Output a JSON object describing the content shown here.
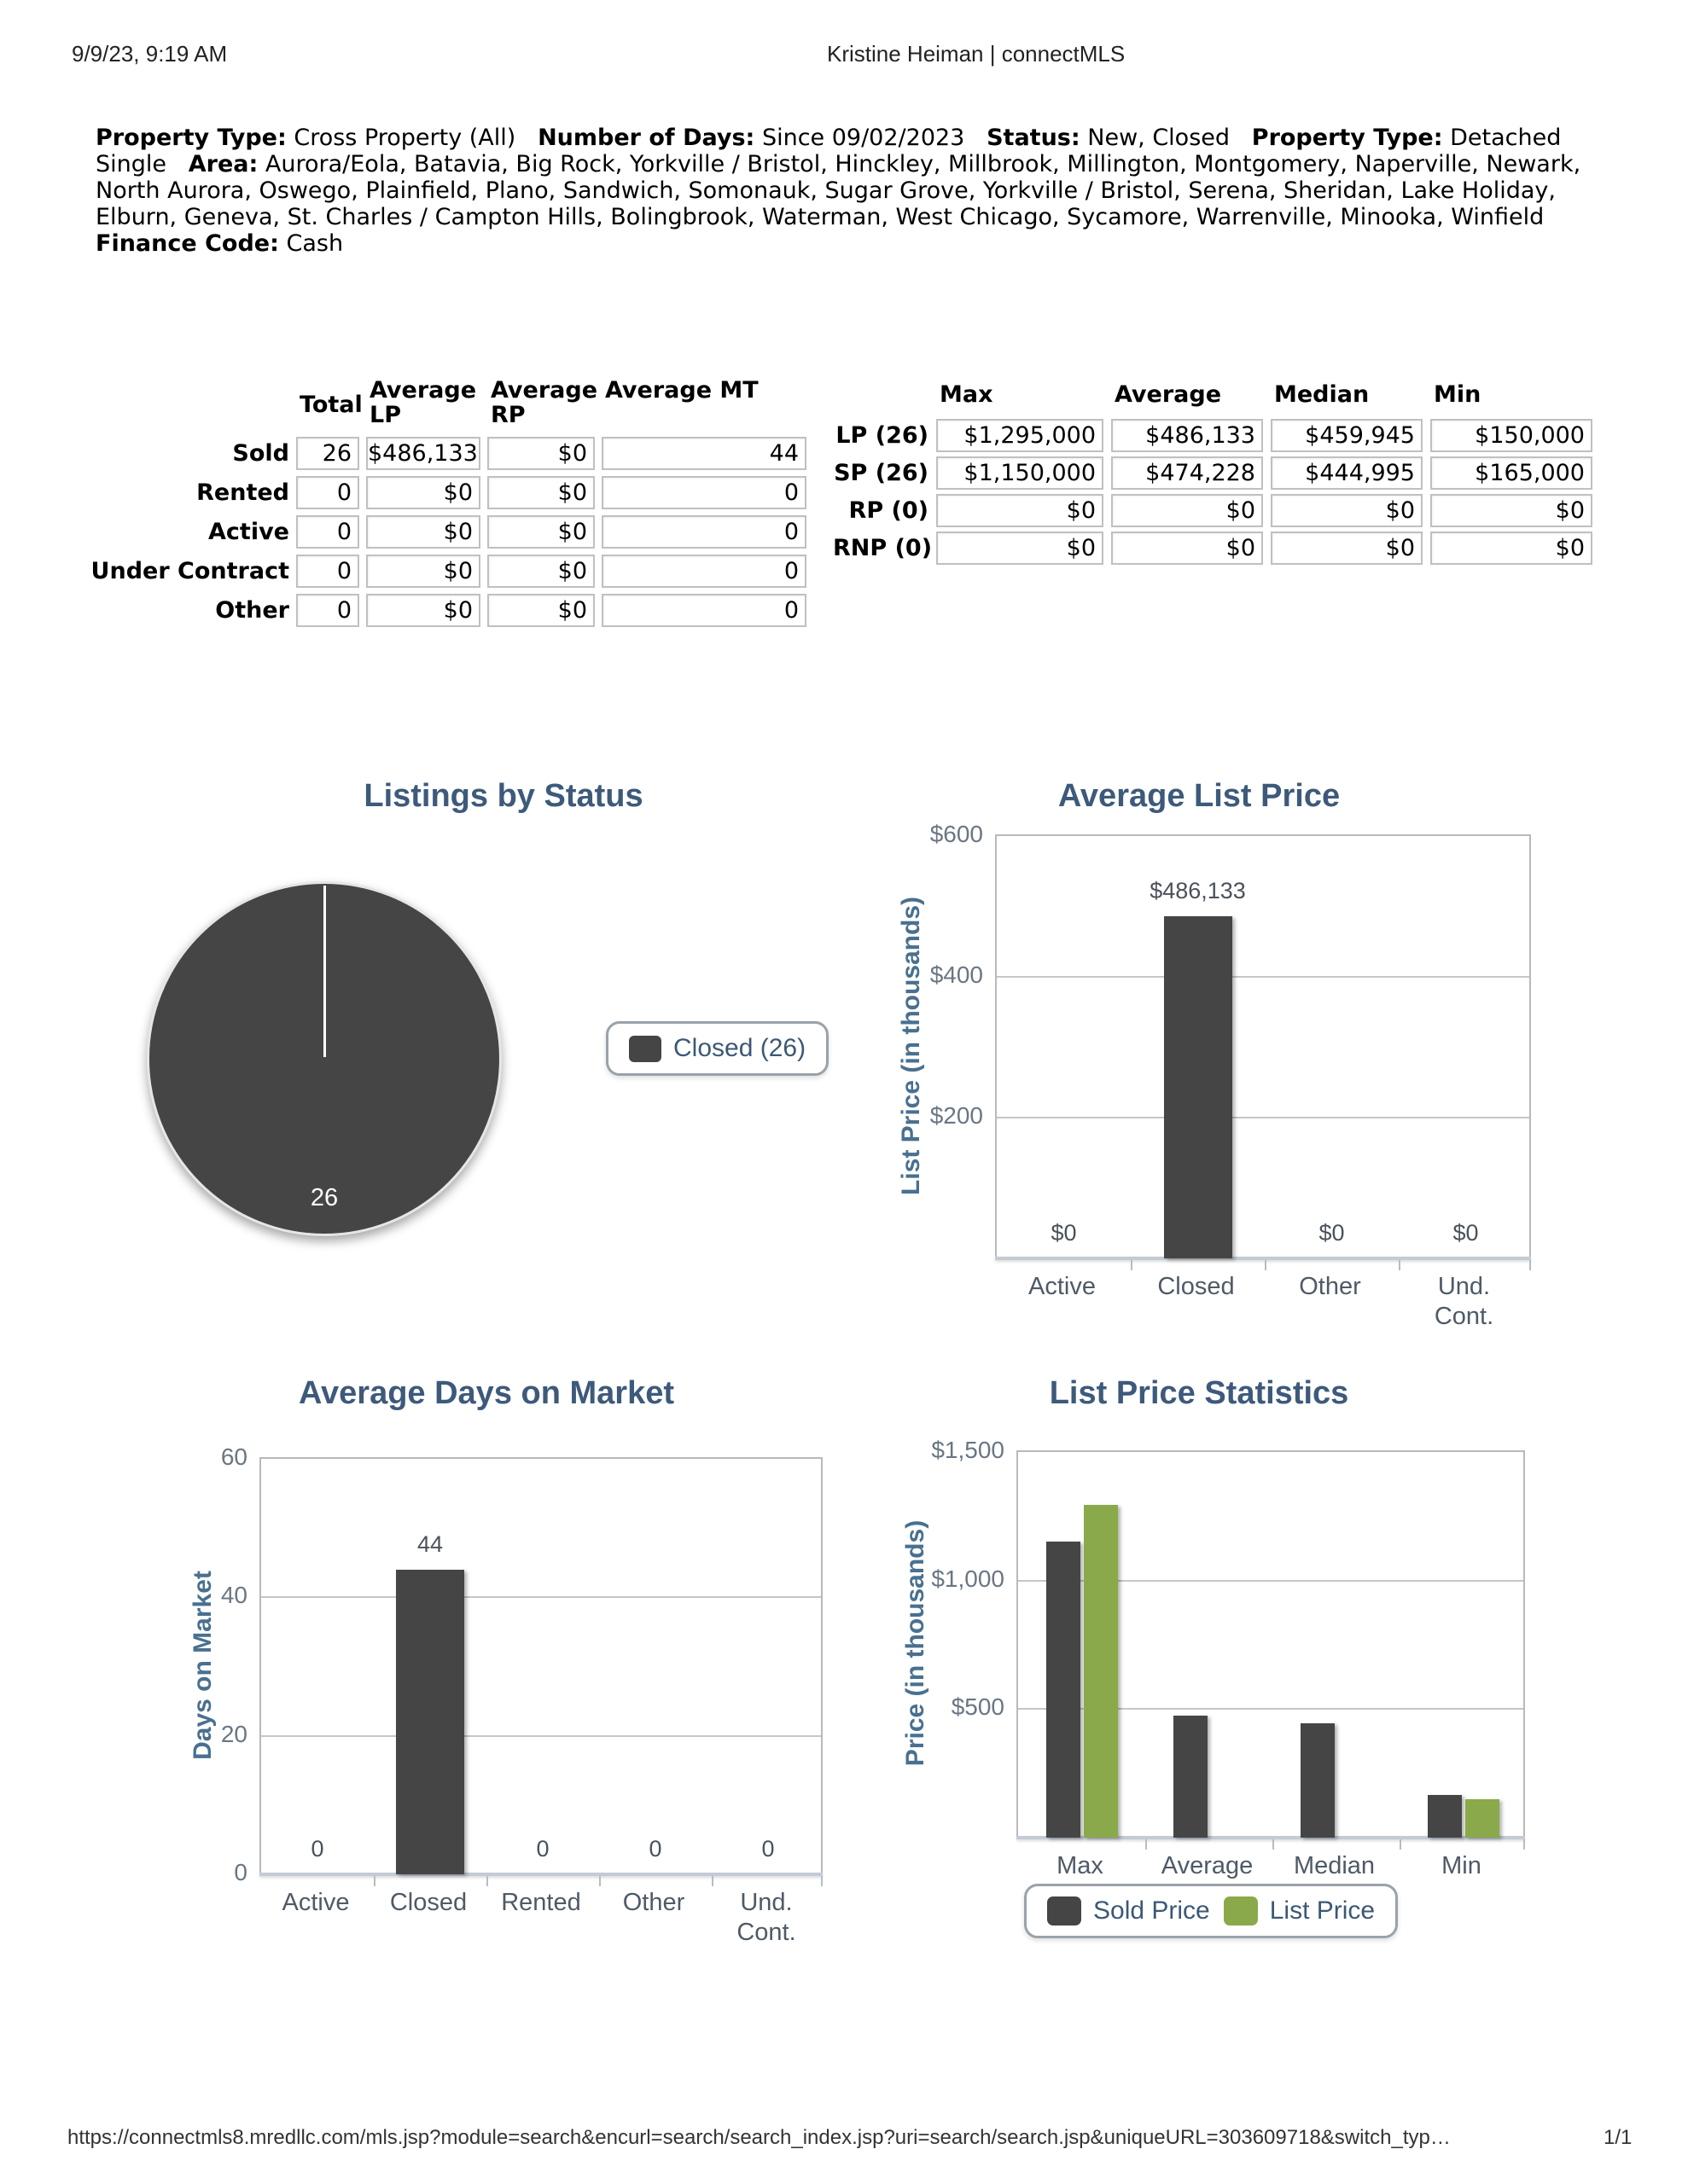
{
  "page": {
    "header": {
      "datetime": "9/9/23, 9:19 AM",
      "title": "Kristine Heiman | connectMLS"
    },
    "footer": {
      "url": "https://connectmls8.mredllc.com/mls.jsp?module=search&encurl=search/search_index.jsp?uri=search/search.jsp&uniqueURL=303609718&switch_typ…",
      "page_indicator": "1/1"
    }
  },
  "criteria": [
    {
      "label": "Property Type:",
      "value": "Cross Property (All)"
    },
    {
      "label": "Number of Days:",
      "value": "Since 09/02/2023"
    },
    {
      "label": "Status:",
      "value": "New, Closed"
    },
    {
      "label": "Property Type:",
      "value": "Detached Single"
    },
    {
      "label": "Area:",
      "value": "Aurora/Eola, Batavia, Big Rock, Yorkville / Bristol, Hinckley, Millbrook, Millington, Montgomery, Naperville, Newark, North Aurora, Oswego, Plainfield, Plano, Sandwich, Somonauk, Sugar Grove, Yorkville / Bristol, Serena, Sheridan, Lake Holiday, Elburn, Geneva, St. Charles / Campton Hills, Bolingbrook, Waterman, West Chicago, Sycamore, Warrenville, Minooka, Winfield"
    },
    {
      "label": "Finance Code:",
      "value": "Cash"
    }
  ],
  "status_table": {
    "columns": [
      "Total",
      "Average\nLP",
      "Average\nRP",
      "Average MT"
    ],
    "rows": [
      {
        "label": "Sold",
        "values": [
          "26",
          "$486,133",
          "$0",
          "44"
        ]
      },
      {
        "label": "Rented",
        "values": [
          "0",
          "$0",
          "$0",
          "0"
        ]
      },
      {
        "label": "Active",
        "values": [
          "0",
          "$0",
          "$0",
          "0"
        ]
      },
      {
        "label": "Under Contract",
        "values": [
          "0",
          "$0",
          "$0",
          "0"
        ]
      },
      {
        "label": "Other",
        "values": [
          "0",
          "$0",
          "$0",
          "0"
        ]
      }
    ]
  },
  "price_table": {
    "columns": [
      "Max",
      "Average",
      "Median",
      "Min"
    ],
    "rows": [
      {
        "label": "LP (26)",
        "values": [
          "$1,295,000",
          "$486,133",
          "$459,945",
          "$150,000"
        ]
      },
      {
        "label": "SP (26)",
        "values": [
          "$1,150,000",
          "$474,228",
          "$444,995",
          "$165,000"
        ]
      },
      {
        "label": "RP (0)",
        "values": [
          "$0",
          "$0",
          "$0",
          "$0"
        ]
      },
      {
        "label": "RNP (0)",
        "values": [
          "$0",
          "$0",
          "$0",
          "$0"
        ]
      }
    ]
  },
  "chart_data": [
    {
      "id": "listings-by-status",
      "type": "pie",
      "title": "Listings by Status",
      "slices": [
        {
          "label": "Closed",
          "value": 26,
          "color": "#454545"
        }
      ],
      "slice_label": "26",
      "legend": [
        {
          "label": "Closed (26)",
          "color": "#454545"
        }
      ],
      "legend_position": "right"
    },
    {
      "id": "average-list-price",
      "type": "bar",
      "title": "Average List Price",
      "ylabel": "List Price (in thousands)",
      "ylim": [
        0,
        600
      ],
      "yticks": [
        {
          "label": "$600",
          "value": 600
        },
        {
          "label": "$400",
          "value": 400
        },
        {
          "label": "$200",
          "value": 200
        }
      ],
      "categories": [
        "Active",
        "Closed",
        "Other",
        "Und.\nCont."
      ],
      "values": [
        0,
        486.133,
        0,
        0
      ],
      "value_labels": [
        "$0",
        "$486,133",
        "$0",
        "$0"
      ],
      "bar_color": "#454545",
      "grid": true
    },
    {
      "id": "average-days-on-market",
      "type": "bar",
      "title": "Average Days on Market",
      "ylabel": "Days on Market",
      "ylim": [
        0,
        60
      ],
      "yticks": [
        {
          "label": "60",
          "value": 60
        },
        {
          "label": "40",
          "value": 40
        },
        {
          "label": "20",
          "value": 20
        },
        {
          "label": "0",
          "value": 0
        }
      ],
      "categories": [
        "Active",
        "Closed",
        "Rented",
        "Other",
        "Und.\nCont."
      ],
      "values": [
        0,
        44,
        0,
        0,
        0
      ],
      "value_labels": [
        "0",
        "44",
        "0",
        "0",
        "0"
      ],
      "bar_color": "#454545",
      "grid": true
    },
    {
      "id": "list-price-statistics",
      "type": "grouped_bar",
      "title": "List Price Statistics",
      "ylabel": "Price (in thousands)",
      "ylim": [
        0,
        1500
      ],
      "yticks": [
        {
          "label": "$1,500",
          "value": 1500
        },
        {
          "label": "$1,000",
          "value": 1000
        },
        {
          "label": "$500",
          "value": 500
        }
      ],
      "categories": [
        "Max",
        "Average",
        "Median",
        "Min"
      ],
      "series": [
        {
          "name": "Sold Price",
          "color": "#454545",
          "values": [
            1150,
            474,
            445,
            165
          ]
        },
        {
          "name": "List Price",
          "color": "#8aa94a",
          "values": [
            1295,
            null,
            null,
            150
          ]
        }
      ],
      "legend": [
        "Sold Price",
        "List Price"
      ],
      "legend_position": "bottom",
      "grid": true
    }
  ]
}
